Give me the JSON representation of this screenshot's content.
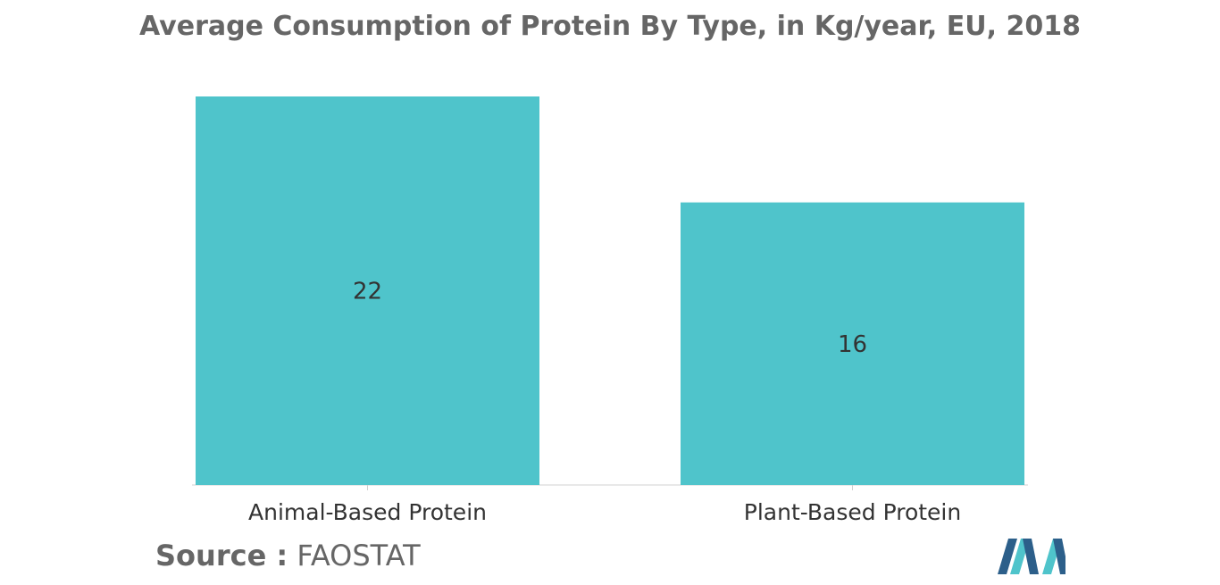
{
  "title": "Average Consumption of Protein By Type, in Kg/year, EU, 2018",
  "source": {
    "label": "Source :",
    "value": "FAOSTAT"
  },
  "colors": {
    "bar": "#4fc4cb",
    "title": "#666666",
    "axis": "#d0d0d0",
    "label_text": "#333333",
    "logo_dark": "#2c5f8a",
    "logo_light": "#4fc4cb"
  },
  "logo_icon": "mordor-intelligence-logo-icon",
  "chart_data": {
    "type": "bar",
    "title": "Average Consumption of Protein By Type, in Kg/year, EU, 2018",
    "categories": [
      "Animal-Based Protein",
      "Plant-Based Protein"
    ],
    "values": [
      22,
      16
    ],
    "data_labels": [
      "22",
      "16"
    ],
    "xlabel": "",
    "ylabel": "",
    "ylim": [
      0,
      22
    ],
    "grid": false,
    "legend": "none"
  }
}
